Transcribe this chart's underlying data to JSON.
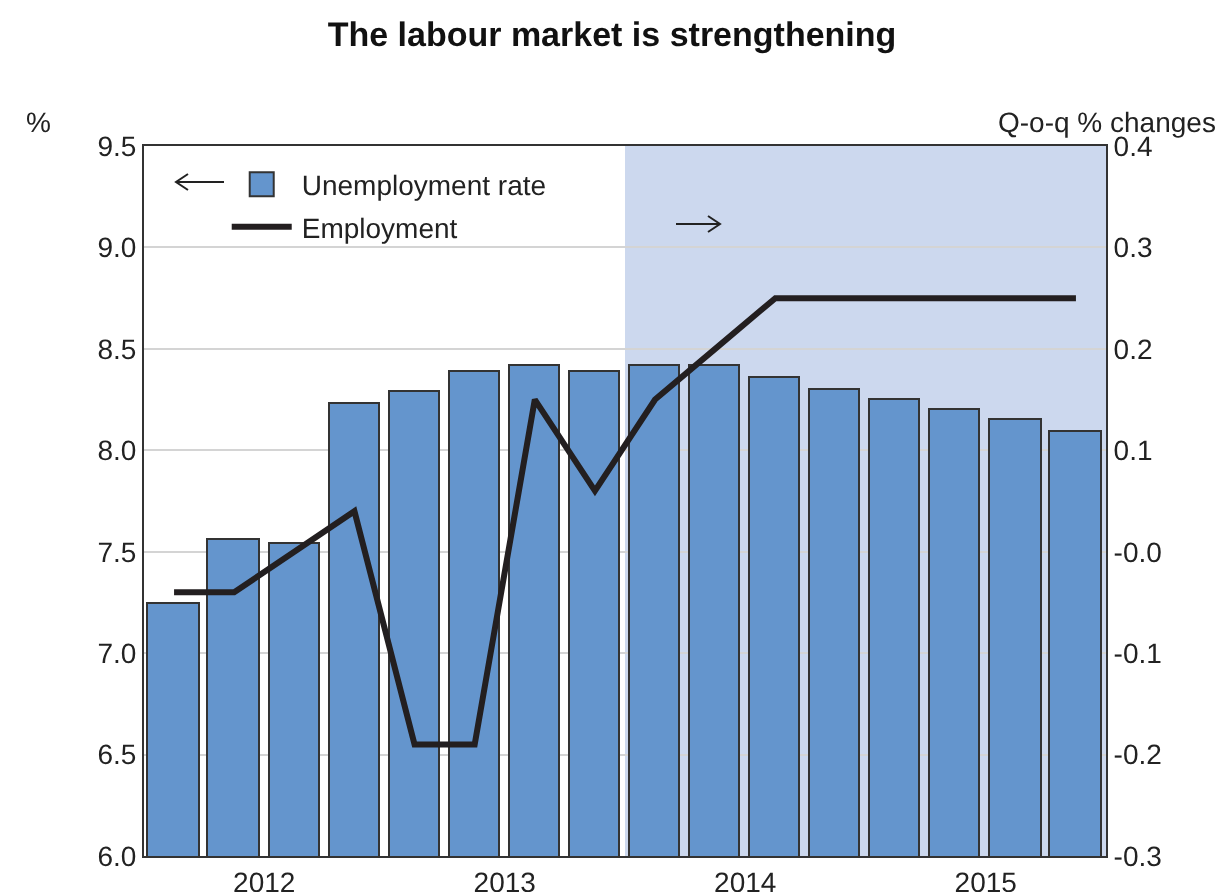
{
  "chart_data": {
    "type": "bar",
    "title": "The labour market is strengthening",
    "ylabel": "%",
    "y2label": "Q-o-q % changes",
    "x": [
      2012.125,
      2012.375,
      2012.625,
      2012.875,
      2013.125,
      2013.375,
      2013.625,
      2013.875,
      2014.125,
      2014.375,
      2014.625,
      2014.875,
      2015.125,
      2015.375,
      2015.625,
      2015.875
    ],
    "series": [
      {
        "name": "Unemployment rate",
        "color": "#6495cd",
        "values": [
          7.24,
          7.56,
          7.54,
          8.23,
          8.29,
          8.39,
          8.42,
          8.39,
          8.42,
          8.42,
          8.36,
          8.3,
          8.25,
          8.2,
          8.15,
          8.09
        ]
      },
      {
        "name": "Employment",
        "type": "line",
        "axis": "y2",
        "color": "#231f20",
        "values": [
          -0.04,
          -0.04,
          0.0,
          0.04,
          -0.19,
          -0.19,
          0.15,
          0.06,
          0.15,
          0.2,
          0.25,
          0.25,
          0.25,
          0.25,
          0.25,
          0.25
        ]
      }
    ],
    "xlim": [
      2012,
      2016
    ],
    "xticks": [
      {
        "value": 2012.5,
        "label": "2012"
      },
      {
        "value": 2013.5,
        "label": "2013"
      },
      {
        "value": 2014.5,
        "label": "2014"
      },
      {
        "value": 2015.5,
        "label": "2015"
      }
    ],
    "ylim": [
      6.0,
      9.5
    ],
    "yticks": [
      {
        "value": 6,
        "label": "6.0"
      },
      {
        "value": 6.5,
        "label": "6.5"
      },
      {
        "value": 7,
        "label": "7.0"
      },
      {
        "value": 7.5,
        "label": "7.5"
      },
      {
        "value": 8,
        "label": "8.0"
      },
      {
        "value": 8.5,
        "label": "8.5"
      },
      {
        "value": 9,
        "label": "9.0"
      },
      {
        "value": 9.5,
        "label": "9.5"
      }
    ],
    "y2lim": [
      -0.3,
      0.4
    ],
    "y2ticks": [
      {
        "value": -0.3,
        "label": "-0.3"
      },
      {
        "value": -0.2,
        "label": "-0.2"
      },
      {
        "value": -0.1,
        "label": "-0.1"
      },
      {
        "value": 0,
        "label": "-0.0"
      },
      {
        "value": 0.1,
        "label": "0.1"
      },
      {
        "value": 0.2,
        "label": "0.2"
      },
      {
        "value": 0.3,
        "label": "0.3"
      },
      {
        "value": 0.4,
        "label": "0.4"
      }
    ],
    "bands": [
      {
        "axis": "x",
        "from": 2014,
        "to": 2016,
        "color": "#ccd8ee"
      }
    ],
    "grid": "y",
    "legend": "top left",
    "marker": "none",
    "line_style": "solid"
  }
}
